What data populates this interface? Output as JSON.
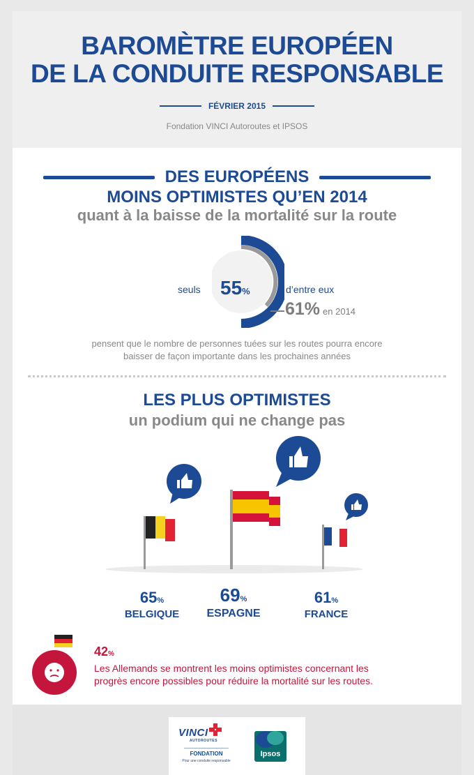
{
  "header": {
    "title_line1": "BAROMÈTRE EUROPÉEN",
    "title_line2": "DE LA CONDUITE RESPONSABLE",
    "date": "FÉVRIER 2015",
    "source": "Fondation VINCI Autoroutes et IPSOS"
  },
  "section1": {
    "title_line1": "DES EUROPÉENS",
    "title_line2": "MOINS OPTIMISTES QU’EN 2014",
    "subtitle": "quant à la baisse de la mortalité sur la route",
    "prefix": "seuls",
    "value": "55",
    "value_unit": "%",
    "suffix": "d’entre eux",
    "previous_value": "61%",
    "previous_label": "en 2014",
    "description_line1": "pensent que le nombre de personnes tuées sur les routes pourra encore",
    "description_line2": "baisser de façon importante dans les prochaines années",
    "gauge": {
      "current_pct": 55,
      "previous_pct": 61
    }
  },
  "section2": {
    "title": "LES PLUS OPTIMISTES",
    "subtitle": "un podium qui ne change pas",
    "countries": [
      {
        "name": "BELGIQUE",
        "value": "65",
        "unit": "%",
        "flag": "belgium-flag"
      },
      {
        "name": "ESPAGNE",
        "value": "69",
        "unit": "%",
        "flag": "spain-flag"
      },
      {
        "name": "FRANCE",
        "value": "61",
        "unit": "%",
        "flag": "france-flag"
      }
    ],
    "least": {
      "value": "42",
      "unit": "%",
      "text_line1": "Les Allemands se montrent les moins optimistes concernant les",
      "text_line2": "progrès encore possibles pour réduire la mortalité sur les routes.",
      "flag": "germany-flag",
      "icon": "sad-face-icon"
    }
  },
  "footer": {
    "vinci_brand": "VINCI",
    "vinci_sub": "AUTOROUTES",
    "fondation": "FONDATION",
    "tagline": "Pour une conduite responsable",
    "ipsos": "Ipsos"
  },
  "colors": {
    "navy": "#1d4a95",
    "red": "#c4163c",
    "grey_text": "#888888",
    "dark_grey": "#7d7d7d"
  }
}
